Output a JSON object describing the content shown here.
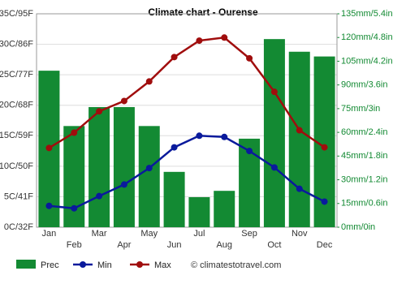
{
  "chart_data": {
    "type": "combo",
    "title": "Climate chart - Ourense",
    "categories": [
      "Jan",
      "Feb",
      "Mar",
      "Apr",
      "May",
      "Jun",
      "Jul",
      "Aug",
      "Sep",
      "Oct",
      "Nov",
      "Dec"
    ],
    "series": [
      {
        "name": "Prec",
        "type": "bar",
        "axis": "y2",
        "color": "#138a33",
        "values": [
          99,
          64,
          76,
          76,
          64,
          35,
          19,
          23,
          56,
          119,
          111,
          108
        ]
      },
      {
        "name": "Min",
        "type": "line",
        "color": "#0a1a9c",
        "values": [
          3.5,
          3.1,
          5.1,
          7.0,
          9.7,
          13.1,
          15.0,
          14.8,
          12.5,
          9.8,
          6.3,
          4.2
        ]
      },
      {
        "name": "Max",
        "type": "line",
        "color": "#a00d0d",
        "values": [
          13.0,
          15.5,
          19.0,
          20.7,
          23.9,
          27.9,
          30.6,
          31.1,
          27.7,
          22.2,
          15.9,
          13.1
        ]
      }
    ],
    "ylim": [
      0,
      35
    ],
    "yticks": [
      {
        "value": 0,
        "label": "0C/32F"
      },
      {
        "value": 5,
        "label": "5C/41F"
      },
      {
        "value": 10,
        "label": "10C/50F"
      },
      {
        "value": 15,
        "label": "15C/59F"
      },
      {
        "value": 20,
        "label": "20C/68F"
      },
      {
        "value": 25,
        "label": "25C/77F"
      },
      {
        "value": 30,
        "label": "30C/86F"
      },
      {
        "value": 35,
        "label": "35C/95F"
      }
    ],
    "y2lim": [
      0,
      135
    ],
    "y2ticks": [
      {
        "value": 0,
        "label": "0mm/0in"
      },
      {
        "value": 15,
        "label": "15mm/0.6in"
      },
      {
        "value": 30,
        "label": "30mm/1.2in"
      },
      {
        "value": 45,
        "label": "45mm/1.8in"
      },
      {
        "value": 60,
        "label": "60mm/2.4in"
      },
      {
        "value": 75,
        "label": "75mm/3in"
      },
      {
        "value": 90,
        "label": "90mm/3.6in"
      },
      {
        "value": 105,
        "label": "105mm/4.2in"
      },
      {
        "value": 120,
        "label": "120mm/4.8in"
      },
      {
        "value": 135,
        "label": "135mm/5.4in"
      }
    ],
    "grid": true,
    "credit": "© climatestotravel.com"
  }
}
